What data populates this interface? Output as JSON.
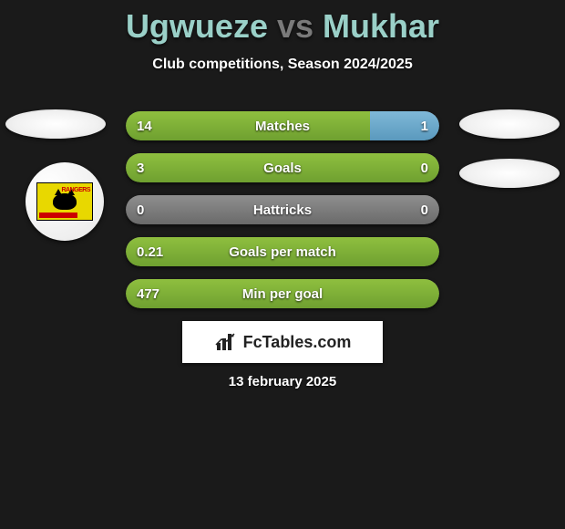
{
  "players": {
    "left": "Ugwueze",
    "right": "Mukhar"
  },
  "title_colors": {
    "left": "#9ad0c8",
    "vs": "#7a7a7a",
    "right": "#9ad0c8"
  },
  "subtitle": "Club competitions, Season 2024/2025",
  "date": "13 february 2025",
  "brand": "FcTables.com",
  "badge": {
    "label": "RANGERS"
  },
  "palette": {
    "green_light": "#8fbf3f",
    "green_dark": "#6fa030",
    "blue_light": "#7fb8d8",
    "blue_dark": "#5a99bd",
    "grey_light": "#8f8f8f",
    "grey_dark": "#6a6a6a",
    "background": "#1a1a1a",
    "text": "#ffffff"
  },
  "bars": [
    {
      "label": "Matches",
      "left_val": "14",
      "right_val": "1",
      "left_pct": 78,
      "right_pct": 22,
      "left_color_a": "#8fbf3f",
      "left_color_b": "#6fa030",
      "right_color_a": "#7fb8d8",
      "right_color_b": "#5a99bd"
    },
    {
      "label": "Goals",
      "left_val": "3",
      "right_val": "0",
      "left_pct": 100,
      "right_pct": 0,
      "left_color_a": "#8fbf3f",
      "left_color_b": "#6fa030",
      "right_color_a": "#7fb8d8",
      "right_color_b": "#5a99bd"
    },
    {
      "label": "Hattricks",
      "left_val": "0",
      "right_val": "0",
      "left_pct": 100,
      "right_pct": 0,
      "left_color_a": "#8f8f8f",
      "left_color_b": "#6a6a6a",
      "right_color_a": "#8f8f8f",
      "right_color_b": "#6a6a6a"
    },
    {
      "label": "Goals per match",
      "left_val": "0.21",
      "right_val": "",
      "left_pct": 100,
      "right_pct": 0,
      "left_color_a": "#8fbf3f",
      "left_color_b": "#6fa030",
      "right_color_a": "#7fb8d8",
      "right_color_b": "#5a99bd"
    },
    {
      "label": "Min per goal",
      "left_val": "477",
      "right_val": "",
      "left_pct": 100,
      "right_pct": 0,
      "left_color_a": "#8fbf3f",
      "left_color_b": "#6fa030",
      "right_color_a": "#7fb8d8",
      "right_color_b": "#5a99bd"
    }
  ]
}
